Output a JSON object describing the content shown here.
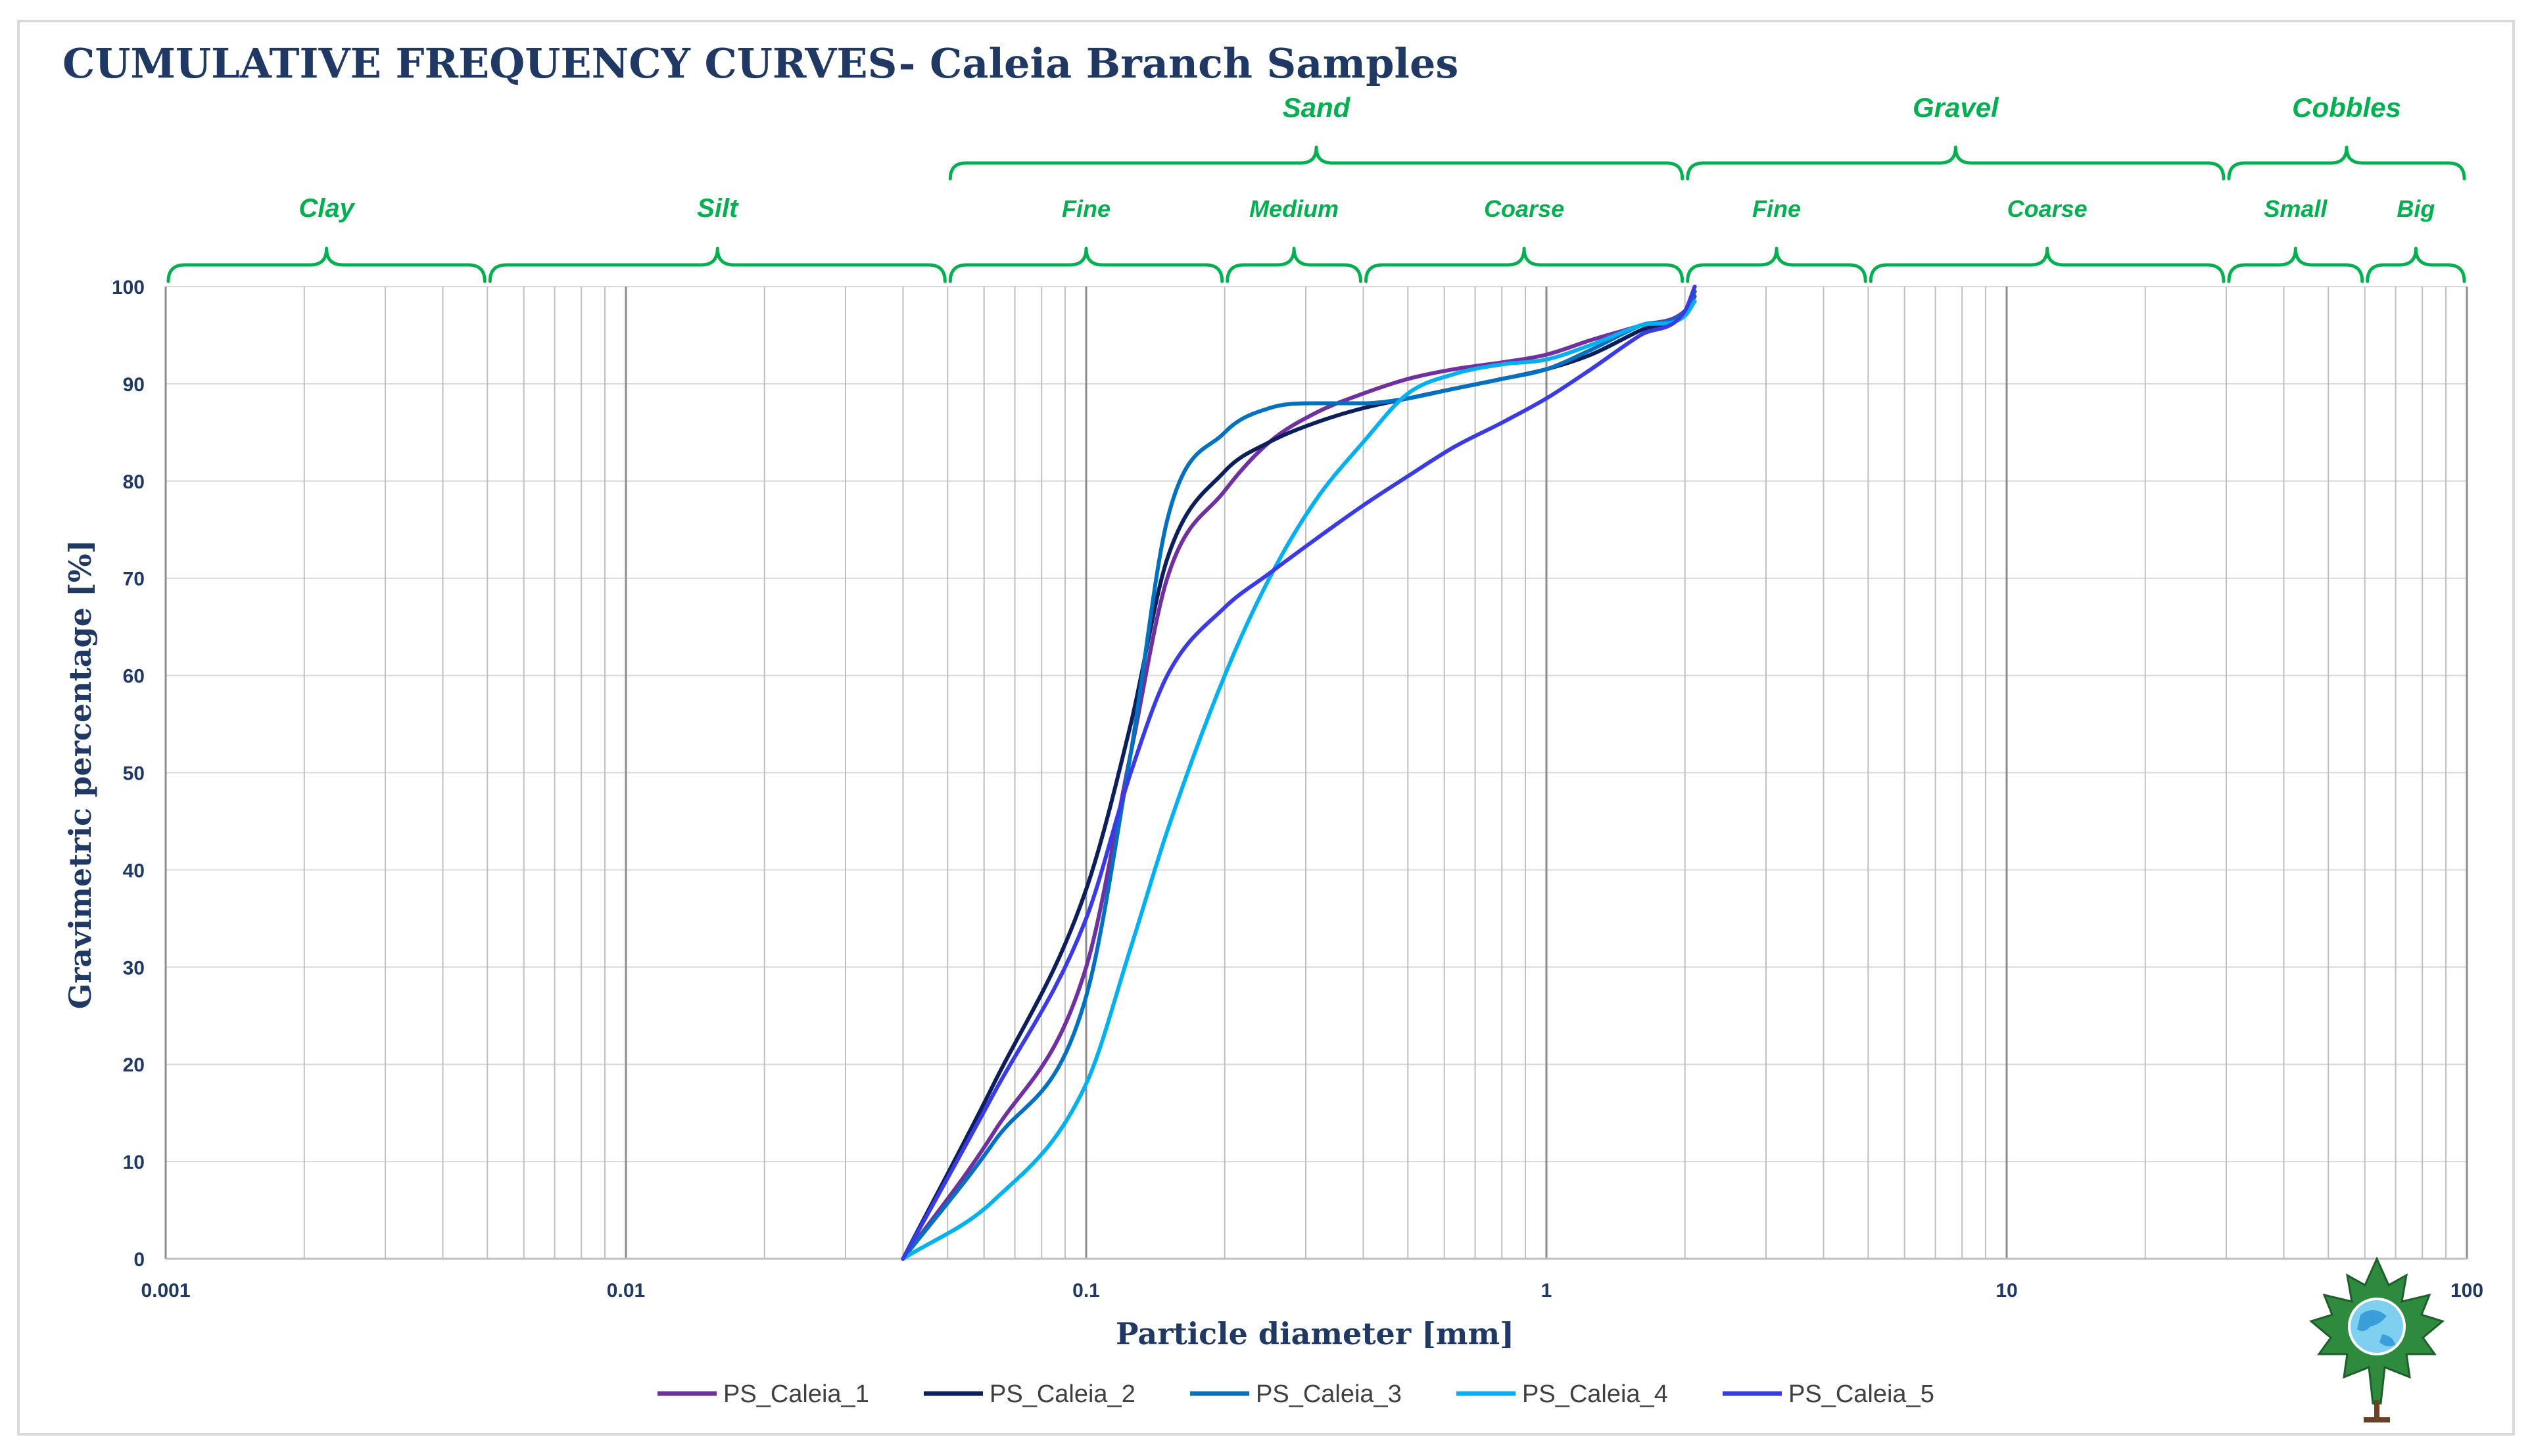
{
  "chart_data": {
    "type": "line",
    "title": "CUMULATIVE FREQUENCY CURVES- Caleia Branch Samples",
    "xlabel": "Particle diameter [mm]",
    "ylabel": "Gravimetric percentage [%]",
    "xscale": "log",
    "xlim": [
      0.001,
      100
    ],
    "ylim": [
      0,
      100
    ],
    "grid": true,
    "legend_position": "bottom",
    "xticks": [
      "0.001",
      "0.01",
      "0.1",
      "1",
      "10",
      "100"
    ],
    "yticks": [
      "0",
      "10",
      "20",
      "30",
      "40",
      "50",
      "60",
      "70",
      "80",
      "90",
      "100"
    ],
    "series": [
      {
        "name": "PS_Caleia_1",
        "color": "#7030a0",
        "x": [
          0.04,
          0.063,
          0.1,
          0.125,
          0.15,
          0.2,
          0.25,
          0.315,
          0.4,
          0.5,
          0.63,
          0.8,
          1.0,
          1.25,
          1.6,
          2.0,
          2.1
        ],
        "y": [
          0,
          13,
          30,
          52,
          70,
          79,
          84,
          87,
          89,
          90.5,
          91.5,
          92.2,
          93,
          94.5,
          96,
          97.5,
          99
        ]
      },
      {
        "name": "PS_Caleia_2",
        "color": "#0c1f5c",
        "x": [
          0.04,
          0.063,
          0.1,
          0.125,
          0.15,
          0.2,
          0.25,
          0.315,
          0.4,
          0.5,
          0.63,
          0.8,
          1.0,
          1.25,
          1.6,
          2.0,
          2.1
        ],
        "y": [
          0,
          18,
          38,
          55,
          72,
          81,
          84,
          86,
          87.5,
          88.5,
          89.5,
          90.5,
          91.5,
          93,
          95.5,
          97.5,
          99.5
        ]
      },
      {
        "name": "PS_Caleia_3",
        "color": "#0070c0",
        "x": [
          0.04,
          0.063,
          0.1,
          0.125,
          0.15,
          0.2,
          0.25,
          0.315,
          0.4,
          0.5,
          0.63,
          0.8,
          1.0,
          1.25,
          1.6,
          2.0,
          2.1
        ],
        "y": [
          0,
          12,
          27,
          52,
          76,
          85,
          87.5,
          88,
          88,
          88.5,
          89.5,
          90.5,
          91.5,
          93.5,
          96,
          97.5,
          99.5
        ]
      },
      {
        "name": "PS_Caleia_4",
        "color": "#00b0f0",
        "x": [
          0.04,
          0.063,
          0.1,
          0.125,
          0.15,
          0.2,
          0.25,
          0.315,
          0.4,
          0.5,
          0.63,
          0.8,
          1.0,
          1.25,
          1.6,
          2.0,
          2.1
        ],
        "y": [
          0,
          6,
          18,
          32,
          44,
          60,
          70,
          78,
          84,
          89,
          91,
          92,
          92.5,
          94,
          96,
          97,
          98.5
        ]
      },
      {
        "name": "PS_Caleia_5",
        "color": "#3b3be6",
        "x": [
          0.04,
          0.063,
          0.1,
          0.125,
          0.15,
          0.2,
          0.25,
          0.315,
          0.4,
          0.5,
          0.63,
          0.8,
          1.0,
          1.25,
          1.6,
          2.0,
          2.1
        ],
        "y": [
          0,
          17,
          35,
          50,
          60,
          67,
          70.5,
          74,
          77.5,
          80.5,
          83.5,
          86,
          88.5,
          91.5,
          95,
          97.5,
          100
        ]
      }
    ],
    "classification": {
      "groups": [
        {
          "label": "Sand",
          "from": 0.05,
          "to": 2
        },
        {
          "label": "Gravel",
          "from": 2,
          "to": 30
        },
        {
          "label": "Cobbles",
          "from": 30,
          "to": 100
        }
      ],
      "classes": [
        {
          "label": "Clay",
          "from": 0.001,
          "to": 0.005
        },
        {
          "label": "Silt",
          "from": 0.005,
          "to": 0.05
        },
        {
          "label": "Fine",
          "from": 0.05,
          "to": 0.2
        },
        {
          "label": "Medium",
          "from": 0.2,
          "to": 0.4
        },
        {
          "label": "Coarse",
          "from": 0.4,
          "to": 2
        },
        {
          "label": "Fine",
          "from": 2,
          "to": 5
        },
        {
          "label": "Coarse",
          "from": 5,
          "to": 30
        },
        {
          "label": "Small",
          "from": 30,
          "to": 60
        },
        {
          "label": "Big",
          "from": 60,
          "to": 100
        }
      ]
    }
  },
  "logo": {
    "icon": "maple-leaf-globe-icon"
  }
}
